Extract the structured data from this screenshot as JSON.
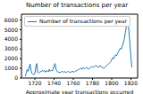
{
  "chart_data": {
    "type": "line",
    "title": "Number of transactions per year",
    "x_label": "Approximate year transactions occurred",
    "x": [
      1710,
      1711,
      1712,
      1713,
      1714,
      1715,
      1716,
      1717,
      1718,
      1719,
      1720,
      1721,
      1722,
      1723,
      1724,
      1725,
      1726,
      1727,
      1728,
      1729,
      1730,
      1731,
      1732,
      1733,
      1734,
      1735,
      1736,
      1737,
      1738,
      1739,
      1740,
      1741,
      1742,
      1743,
      1744,
      1745,
      1746,
      1747,
      1748,
      1749,
      1750,
      1751,
      1752,
      1753,
      1754,
      1755,
      1756,
      1757,
      1758,
      1759,
      1760,
      1761,
      1762,
      1763,
      1764,
      1765,
      1766,
      1767,
      1768,
      1769,
      1770,
      1771,
      1772,
      1773,
      1774,
      1775,
      1776,
      1777,
      1778,
      1779,
      1780,
      1781,
      1782,
      1783,
      1784,
      1785,
      1786,
      1787,
      1788,
      1789,
      1790,
      1791,
      1792,
      1793,
      1794,
      1795,
      1796,
      1797,
      1798,
      1799,
      1800,
      1801,
      1802,
      1803,
      1804,
      1805,
      1806,
      1807,
      1808,
      1809,
      1810,
      1811,
      1812,
      1813,
      1814,
      1815,
      1816,
      1817,
      1818,
      1819,
      1820,
      1821
    ],
    "series": [
      {
        "name": "Number of transactions per year",
        "color": "#1f77b4",
        "values": [
          200,
          500,
          900,
          700,
          1100,
          1450,
          800,
          500,
          400,
          350,
          500,
          1200,
          1500,
          600,
          500,
          600,
          700,
          650,
          800,
          700,
          750,
          600,
          800,
          700,
          650,
          900,
          700,
          800,
          750,
          900,
          1300,
          1500,
          900,
          700,
          600,
          650,
          550,
          600,
          700,
          650,
          600,
          700,
          550,
          600,
          650,
          700,
          600,
          550,
          650,
          700,
          650,
          600,
          700,
          750,
          800,
          850,
          900,
          950,
          1000,
          900,
          1100,
          1000,
          950,
          1050,
          1100,
          1000,
          900,
          1000,
          1100,
          1200,
          1150,
          1100,
          1200,
          1300,
          1250,
          1200,
          1100,
          1200,
          1300,
          1150,
          1100,
          1050,
          1000,
          1100,
          1200,
          1300,
          1400,
          1500,
          1600,
          1700,
          1900,
          2100,
          2000,
          2200,
          2400,
          2300,
          2500,
          2700,
          2900,
          3100,
          3000,
          3300,
          3600,
          4000,
          4600,
          5200,
          6300,
          5800,
          4800,
          3500,
          2200,
          1100
        ]
      }
    ],
    "xlim": [
      1706,
      1827
    ],
    "xticks": [
      1720,
      1740,
      1760,
      1780,
      1800,
      1820
    ],
    "ylim": [
      0,
      6600
    ],
    "yticks": [
      0,
      1000,
      2000,
      3000,
      4000,
      5000,
      6000
    ],
    "legend": "upper left",
    "grid": false
  }
}
